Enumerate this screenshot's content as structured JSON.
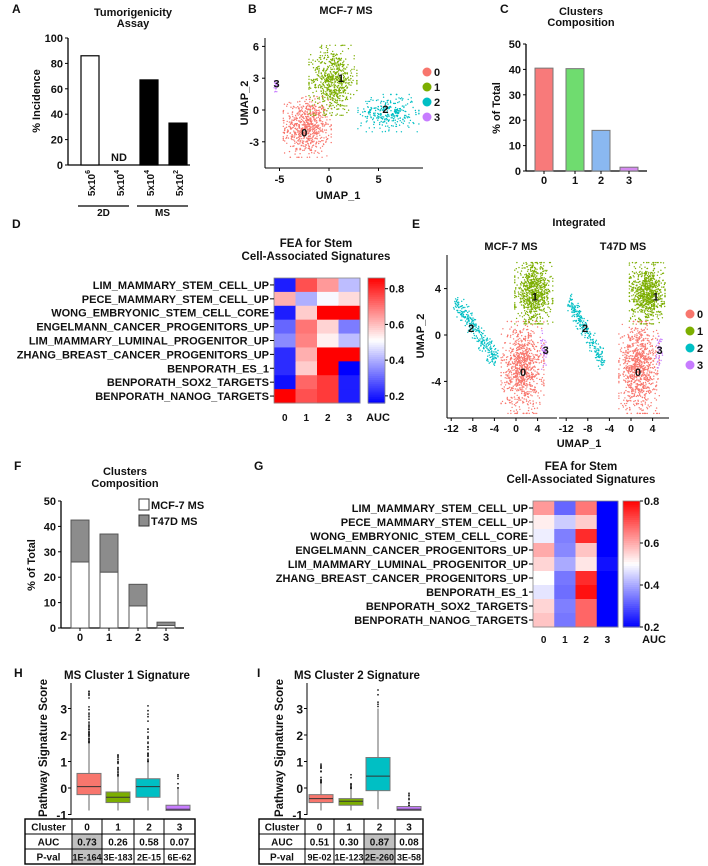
{
  "cluster_colors": [
    "#F8766D",
    "#7CAE00",
    "#00BFC4",
    "#C77CFF"
  ],
  "chart_data": [
    {
      "panel_label": "A",
      "type": "bar",
      "title": [
        "Tumorigenicity",
        "Assay"
      ],
      "ylabel": "% Incidence",
      "ylim": [
        0,
        100
      ],
      "yticks": [
        0,
        20,
        40,
        60,
        80,
        100
      ],
      "categories": [
        {
          "base": "5x10",
          "exp": "6"
        },
        {
          "base": "5x10",
          "exp": "4"
        },
        {
          "base": "5x10",
          "exp": "4"
        },
        {
          "base": "5x10",
          "exp": "2"
        }
      ],
      "values": [
        86,
        null,
        67,
        33
      ],
      "bar_fill": [
        "#ffffff",
        "#ffffff",
        "#000000",
        "#000000"
      ],
      "annotations": [
        "",
        "ND",
        "",
        ""
      ],
      "groups": [
        {
          "name": "2D",
          "members": [
            0,
            1
          ]
        },
        {
          "name": "MS",
          "members": [
            2,
            3
          ]
        }
      ]
    },
    {
      "panel_label": "B",
      "type": "scatter",
      "title": "MCF-7 MS",
      "xlabel": "UMAP_1",
      "ylabel": "UMAP_2",
      "xticks": [
        -5,
        0,
        5
      ],
      "yticks": [
        -3,
        0,
        3,
        6
      ],
      "legend": [
        "0",
        "1",
        "2",
        "3"
      ],
      "legend_position": "right",
      "clusters": [
        {
          "name": "0",
          "shape": "ellipse",
          "center": [
            -2.2,
            -1.6
          ],
          "sd": [
            1.1,
            1.3
          ],
          "n": 700,
          "label_at": [
            -2.5,
            -2.1
          ]
        },
        {
          "name": "1",
          "shape": "ellipse",
          "center": [
            0.4,
            2.8
          ],
          "sd": [
            1.1,
            1.5
          ],
          "n": 650,
          "label_at": [
            1.2,
            3.0
          ]
        },
        {
          "name": "2",
          "shape": "ellipse",
          "center": [
            6.0,
            -0.3
          ],
          "sd": [
            1.4,
            0.8
          ],
          "n": 300,
          "label_at": [
            5.7,
            0.1
          ]
        },
        {
          "name": "3",
          "shape": "ellipse",
          "center": [
            -5.4,
            2.2
          ],
          "sd": [
            0.1,
            0.25
          ],
          "n": 20,
          "label_at": [
            -5.3,
            2.5
          ]
        }
      ]
    },
    {
      "panel_label": "C",
      "type": "bar",
      "title": [
        "Clusters",
        "Composition"
      ],
      "ylabel": "% of Total",
      "ylim": [
        0,
        50
      ],
      "yticks": [
        0,
        10,
        20,
        30,
        40,
        50
      ],
      "categories": [
        "0",
        "1",
        "2",
        "3"
      ],
      "values": [
        40.5,
        40.3,
        16,
        1.5
      ],
      "bar_fill": [
        "#F87A7A",
        "#6FDC6F",
        "#8AB8F0",
        "#D58AF0"
      ]
    },
    {
      "panel_label": "D",
      "type": "heatmap",
      "title": [
        "FEA for Stem",
        "Cell-Associated Signatures"
      ],
      "rows": [
        "LIM_MAMMARY_STEM_CELL_UP",
        "PECE_MAMMARY_STEM_CELL_UP",
        "WONG_EMBRYONIC_STEM_CELL_CORE",
        "ENGELMANN_CANCER_PROGENITORS_UP",
        "LIM_MAMMARY_LUMINAL_PROGENITOR_UP",
        "ZHANG_BREAST_CANCER_PROGENITORS_UP",
        "BENPORATH_ES_1",
        "BENPORATH_SOX2_TARGETS",
        "BENPORATH_NANOG_TARGETS"
      ],
      "columns": [
        "0",
        "1",
        "2",
        "3"
      ],
      "values": [
        [
          0.2,
          0.75,
          0.65,
          0.42
        ],
        [
          0.62,
          0.4,
          0.5,
          0.56
        ],
        [
          0.2,
          0.58,
          0.86,
          0.86
        ],
        [
          0.3,
          0.7,
          0.57,
          0.33
        ],
        [
          0.35,
          0.68,
          0.53,
          0.42
        ],
        [
          0.22,
          0.62,
          0.86,
          0.86
        ],
        [
          0.22,
          0.58,
          0.86,
          0.16
        ],
        [
          0.18,
          0.72,
          0.78,
          0.2
        ],
        [
          0.86,
          0.75,
          0.78,
          0.2
        ]
      ],
      "colorbar": {
        "label": "AUC",
        "range": [
          0.16,
          0.86
        ],
        "ticks": [
          0.8,
          0.6,
          0.4,
          0.2
        ],
        "low_color": "#0000FF",
        "mid_color": "#FFFFFF",
        "high_color": "#FF0000"
      }
    },
    {
      "panel_label": "E",
      "type": "scatter",
      "title": "Integrated",
      "xlabel": "UMAP_1",
      "ylabel": "UMAP_2",
      "xticks": [
        -12,
        -8,
        -4,
        0,
        4
      ],
      "yticks": [
        4,
        0,
        -4
      ],
      "legend": [
        "0",
        "1",
        "2",
        "3"
      ],
      "legend_position": "right",
      "facets": [
        {
          "title": "MCF-7 MS",
          "clusters": [
            {
              "name": "0",
              "shape": "ellipse",
              "center": [
                1.2,
                -2.8
              ],
              "sd": [
                1.8,
                1.8
              ],
              "n": 900,
              "label_at": [
                1.3,
                -3.2
              ]
            },
            {
              "name": "1",
              "shape": "ellipse",
              "center": [
                3.3,
                3.6
              ],
              "sd": [
                1.6,
                1.2
              ],
              "n": 800,
              "label_at": [
                3.5,
                3.3
              ]
            },
            {
              "name": "2",
              "shape": "band",
              "from": [
                -11.3,
                3.0
              ],
              "to": [
                -3.5,
                -2.3
              ],
              "width": 0.9,
              "n": 300,
              "label_at": [
                -8.3,
                0.6
              ]
            },
            {
              "name": "3",
              "shape": "ellipse",
              "center": [
                5.2,
                -1.2
              ],
              "sd": [
                0.3,
                0.8
              ],
              "n": 40,
              "label_at": [
                5.5,
                -1.3
              ]
            }
          ]
        },
        {
          "title": "T47D MS",
          "clusters": [
            {
              "name": "0",
              "shape": "ellipse",
              "center": [
                1.5,
                -2.8
              ],
              "sd": [
                1.7,
                1.8
              ],
              "n": 900,
              "label_at": [
                1.3,
                -3.2
              ]
            },
            {
              "name": "1",
              "shape": "ellipse",
              "center": [
                3.0,
                3.6
              ],
              "sd": [
                1.5,
                1.2
              ],
              "n": 800,
              "label_at": [
                4.6,
                3.3
              ]
            },
            {
              "name": "2",
              "shape": "band",
              "from": [
                -11.5,
                3.0
              ],
              "to": [
                -5.0,
                -2.4
              ],
              "width": 0.8,
              "n": 260,
              "label_at": [
                -8.5,
                0.6
              ]
            },
            {
              "name": "3",
              "shape": "ellipse",
              "center": [
                5.2,
                -1.3
              ],
              "sd": [
                0.3,
                0.7
              ],
              "n": 35,
              "label_at": [
                5.3,
                -1.3
              ]
            }
          ]
        }
      ]
    },
    {
      "panel_label": "F",
      "type": "bar",
      "title": [
        "Clusters",
        "Composition"
      ],
      "ylabel": "% of Total",
      "ylim": [
        0,
        50
      ],
      "yticks": [
        0,
        10,
        20,
        30,
        40,
        50
      ],
      "categories": [
        "0",
        "1",
        "2",
        "3"
      ],
      "stacked": true,
      "series": [
        {
          "name": "MCF-7 MS",
          "values": [
            26,
            22,
            8.7,
            1.0
          ],
          "color": "#FFFFFF"
        },
        {
          "name": "T47D MS",
          "values": [
            16.5,
            15,
            8.5,
            1.3
          ],
          "color": "#8C8C8C"
        }
      ],
      "legend_position": "top-right"
    },
    {
      "panel_label": "G",
      "type": "heatmap",
      "title": [
        "FEA for Stem",
        "Cell-Associated Signatures"
      ],
      "rows": [
        "LIM_MAMMARY_STEM_CELL_UP",
        "PECE_MAMMARY_STEM_CELL_UP",
        "WONG_EMBRYONIC_STEM_CELL_CORE",
        "ENGELMANN_CANCER_PROGENITORS_UP",
        "LIM_MAMMARY_LUMINAL_PROGENITOR_UP",
        "ZHANG_BREAST_CANCER_PROGENITORS_UP",
        "BENPORATH_ES_1",
        "BENPORATH_SOX2_TARGETS",
        "BENPORATH_NANOG_TARGETS"
      ],
      "columns": [
        "0",
        "1",
        "2",
        "3"
      ],
      "values": [
        [
          0.62,
          0.32,
          0.66,
          0.2
        ],
        [
          0.52,
          0.44,
          0.56,
          0.2
        ],
        [
          0.48,
          0.35,
          0.75,
          0.2
        ],
        [
          0.6,
          0.36,
          0.57,
          0.2
        ],
        [
          0.55,
          0.4,
          0.53,
          0.22
        ],
        [
          0.5,
          0.34,
          0.75,
          0.2
        ],
        [
          0.47,
          0.33,
          0.78,
          0.2
        ],
        [
          0.55,
          0.35,
          0.68,
          0.2
        ],
        [
          0.57,
          0.34,
          0.68,
          0.2
        ]
      ],
      "colorbar": {
        "label": "AUC",
        "range": [
          0.2,
          0.8
        ],
        "ticks": [
          0.8,
          0.6,
          0.4,
          0.2
        ],
        "low_color": "#0000FF",
        "mid_color": "#FFFFFF",
        "high_color": "#FF0000"
      }
    },
    {
      "panel_label": "H",
      "type": "box",
      "title": "MS Cluster 1 Signature",
      "ylabel": "Pathway Signature Score",
      "yticks": [
        -1,
        0,
        1,
        2,
        3
      ],
      "boxes": [
        {
          "cluster": "0",
          "whisker": [
            -0.85,
            1.7
          ],
          "q1": -0.25,
          "median": 0.05,
          "q3": 0.55,
          "outliers": [
            1.7,
            3.65
          ],
          "outlier_count": 40
        },
        {
          "cluster": "1",
          "whisker": [
            -0.85,
            0.45
          ],
          "q1": -0.55,
          "median": -0.35,
          "q3": -0.15,
          "outliers": [
            0.45,
            1.25
          ],
          "outlier_count": 20
        },
        {
          "cluster": "2",
          "whisker": [
            -0.85,
            1.0
          ],
          "q1": -0.35,
          "median": 0.05,
          "q3": 0.35,
          "outliers": [
            1.0,
            3.1
          ],
          "outlier_count": 30
        },
        {
          "cluster": "3",
          "whisker": [
            -0.85,
            0.0
          ],
          "q1": -0.85,
          "median": -0.8,
          "q3": -0.65,
          "outliers": [
            0.0,
            0.5
          ],
          "outlier_count": 6
        }
      ],
      "table": {
        "row_headers": [
          "Cluster",
          "AUC",
          "P-val"
        ],
        "rows": [
          [
            "0",
            "1",
            "2",
            "3"
          ],
          [
            "0.73",
            "0.26",
            "0.58",
            "0.07"
          ],
          [
            "1E-164",
            "3E-183",
            "2E-15",
            "6E-62"
          ]
        ],
        "highlight_column": 0,
        "highlight_color": "#C0C0C0"
      }
    },
    {
      "panel_label": "I",
      "type": "box",
      "title": "MS Cluster 2 Signature",
      "ylabel": "Pathway Signature Score",
      "yticks": [
        -1,
        0,
        1,
        2,
        3
      ],
      "boxes": [
        {
          "cluster": "0",
          "whisker": [
            -0.85,
            0.2
          ],
          "q1": -0.55,
          "median": -0.4,
          "q3": -0.25,
          "outliers": [
            0.2,
            0.9
          ],
          "outlier_count": 20
        },
        {
          "cluster": "1",
          "whisker": [
            -0.85,
            -0.05
          ],
          "q1": -0.65,
          "median": -0.5,
          "q3": -0.4,
          "outliers": [
            -0.05,
            0.5
          ],
          "outlier_count": 12
        },
        {
          "cluster": "2",
          "whisker": [
            -0.8,
            3.0
          ],
          "q1": -0.1,
          "median": 0.45,
          "q3": 1.15,
          "outliers": [
            3.0,
            3.7
          ],
          "outlier_count": 5
        },
        {
          "cluster": "3",
          "whisker": [
            -0.85,
            -0.7
          ],
          "q1": -0.85,
          "median": -0.8,
          "q3": -0.7,
          "outliers": [
            -0.7,
            -0.2
          ],
          "outlier_count": 10
        }
      ],
      "table": {
        "row_headers": [
          "Cluster",
          "AUC",
          "P-val"
        ],
        "rows": [
          [
            "0",
            "1",
            "2",
            "3"
          ],
          [
            "0.51",
            "0.30",
            "0.87",
            "0.08"
          ],
          [
            "9E-02",
            "1E-123",
            "2E-260",
            "3E-58"
          ]
        ],
        "highlight_column": 2,
        "highlight_color": "#C0C0C0"
      }
    }
  ]
}
